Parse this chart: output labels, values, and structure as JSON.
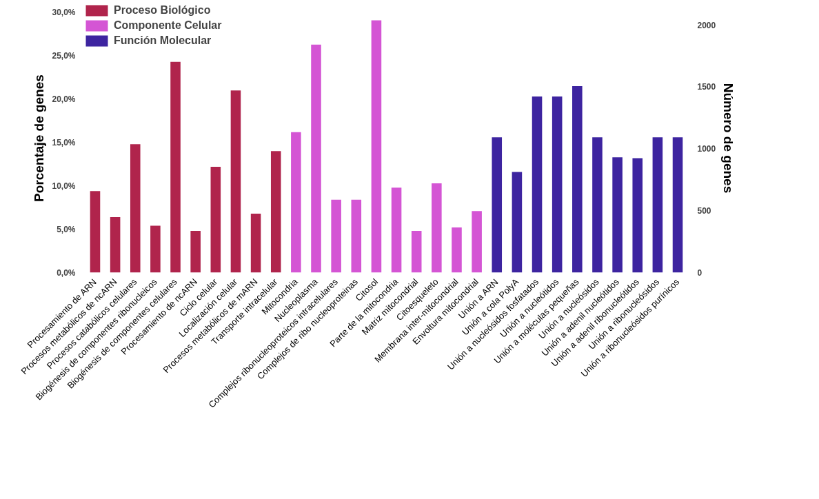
{
  "chart_data": {
    "type": "bar",
    "categories": [
      "Procesamiento de ARN",
      "Procesos metabólicos de ncARN",
      "Procesos catabólicos celulares",
      "Biogénesis de componentes ribonucleicos",
      "Biogénesis de componentes celulares",
      "Procesamiento de ncARN",
      "Ciclo celular",
      "Localización celular",
      "Procesos metabólicos de mARN",
      "Transporte intracelular",
      "Mitocondria",
      "Nucleoplasma",
      "Complejos ribonucleoproteicos intracelulares",
      "Complejos de ribo nucleoproteinas",
      "Citosol",
      "Parte de la mitocondria",
      "Matriz mitocondrial",
      "Citoesqueleto",
      "Membrana inter-mitocondrial",
      "Envoltura mitocondrial",
      "Unión a ARN",
      "Unión a cola PolyA",
      "Unión a nucleósidos fosfatados",
      "Unión a nucleótidos",
      "Unión a moléculas pequeñas",
      "Unión a nucleósidos",
      "Unión a adenil nucleótidos",
      "Unión a adenil ribonucleótidos",
      "Unión a ribonucleósidos",
      "Unión a ribonucleósidos purínicos"
    ],
    "series": [
      {
        "name": "Proceso Biológico",
        "color": "#b0244c",
        "values": [
          9.4,
          6.4,
          14.8,
          5.4,
          24.3,
          4.8,
          12.2,
          21.0,
          6.8,
          14.0,
          null,
          null,
          null,
          null,
          null,
          null,
          null,
          null,
          null,
          null,
          null,
          null,
          null,
          null,
          null,
          null,
          null,
          null,
          null,
          null
        ]
      },
      {
        "name": "Componente Celular",
        "color": "#d455d4",
        "values": [
          null,
          null,
          null,
          null,
          null,
          null,
          null,
          null,
          null,
          null,
          16.2,
          26.3,
          8.4,
          8.4,
          29.1,
          9.8,
          4.8,
          10.3,
          5.2,
          7.1,
          null,
          null,
          null,
          null,
          null,
          null,
          null,
          null,
          null,
          null
        ]
      },
      {
        "name": "Función Molecular",
        "color": "#3d24a0",
        "values": [
          null,
          null,
          null,
          null,
          null,
          null,
          null,
          null,
          null,
          null,
          null,
          null,
          null,
          null,
          null,
          null,
          null,
          null,
          null,
          null,
          15.6,
          11.6,
          20.3,
          20.3,
          21.5,
          15.6,
          13.3,
          13.2,
          15.6,
          15.6
        ]
      }
    ],
    "ylabel": "Porcentaje de genes",
    "y2label": "Número de genes",
    "ylim": [
      0,
      31
    ],
    "yticks": [
      {
        "value": 0,
        "label": "0,0%"
      },
      {
        "value": 5,
        "label": "5,0%"
      },
      {
        "value": 10,
        "label": "10,0%"
      },
      {
        "value": 15,
        "label": "15,0%"
      },
      {
        "value": 20,
        "label": "20,0%"
      },
      {
        "value": 25,
        "label": "25,0%"
      },
      {
        "value": 30,
        "label": "30,0%"
      }
    ],
    "y2lim": [
      0,
      2170
    ],
    "y2ticks": [
      0,
      500,
      1000,
      1500,
      2000
    ],
    "legend": "top left",
    "grid": false
  }
}
